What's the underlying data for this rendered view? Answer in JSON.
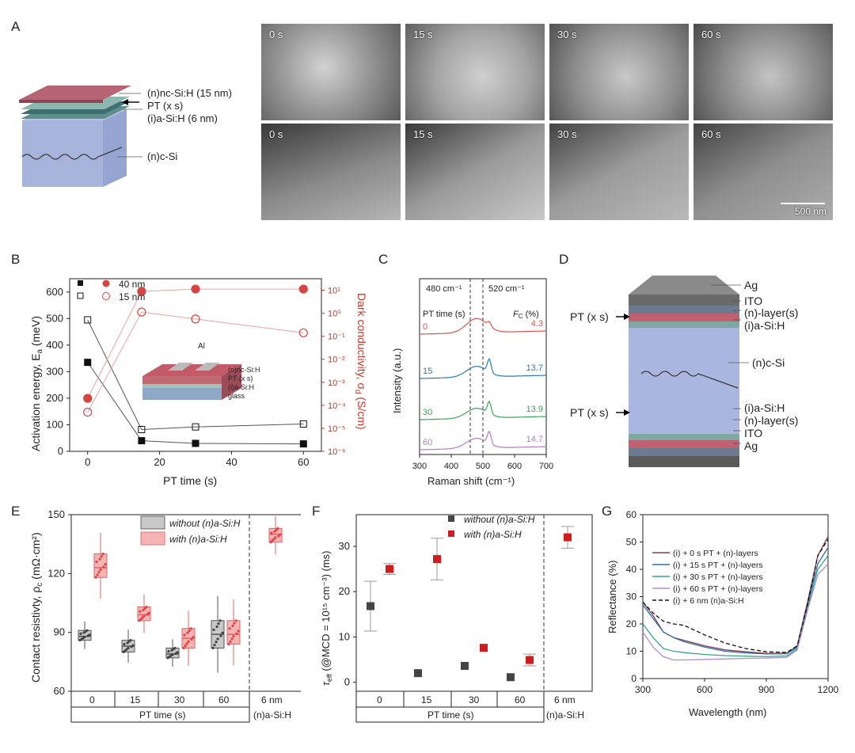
{
  "panels": [
    "A",
    "B",
    "C",
    "D",
    "E",
    "F",
    "G"
  ],
  "panelA": {
    "stack_labels": [
      "(n)nc-Si:H (15 nm)",
      "PT (x s)",
      "(i)a-Si:H (6 nm)",
      "(n)c-Si"
    ],
    "sem_times": [
      "0 s",
      "15 s",
      "30 s",
      "60 s"
    ],
    "scale_bar": "500 nm"
  },
  "panelB": {
    "ylabel_left": "Activation energy, E",
    "ylabel_left_sub": "a",
    "ylabel_left_unit": " (meV)",
    "ylabel_right": "Dark conductivity, σ",
    "ylabel_right_sub": "d",
    "ylabel_right_unit": " (S/cm)",
    "xlabel": "PT time (s)",
    "legend": [
      "40 nm",
      "15 nm"
    ],
    "inset_labels": [
      "Al",
      "(n)nc-Si:H",
      "PT (x s)",
      "(i)a-Si:H",
      "glass"
    ],
    "xticks": [
      "0",
      "20",
      "40",
      "60"
    ],
    "yticks_left": [
      "0",
      "100",
      "200",
      "300",
      "400",
      "500",
      "600"
    ],
    "yticks_right": [
      "10⁻⁶",
      "10⁻⁵",
      "10⁻⁴",
      "10⁻³",
      "10⁻²",
      "10⁻¹",
      "10⁰",
      "10¹"
    ]
  },
  "panelC": {
    "xlabel": "Raman shift (cm⁻¹)",
    "ylabel": "Intensity (a.u.)",
    "header_left": "PT time (s)",
    "header_right": "F",
    "header_right_sub": "C",
    "header_right_unit": " (%)",
    "line_labels": [
      "480 cm⁻¹",
      "520 cm⁻¹"
    ],
    "times": [
      "0",
      "15",
      "30",
      "60"
    ],
    "fc": [
      "4.3",
      "13.7",
      "13.9",
      "14.7"
    ],
    "colors": [
      "#d9534f",
      "#2a7ab8",
      "#3aa35a",
      "#b07cc6"
    ],
    "xticks": [
      "300",
      "400",
      "500",
      "600",
      "700"
    ]
  },
  "panelD": {
    "labels_right": [
      "Ag",
      "ITO",
      "(n)-layer(s)",
      "(i)a-Si:H",
      "(n)c-Si",
      "(i)a-Si:H",
      "(n)-layer(s)",
      "ITO",
      "Ag"
    ],
    "labels_left": [
      "PT (x s)",
      "PT (x s)"
    ]
  },
  "panelE": {
    "ylabel": "Contact resistivty, ρ",
    "ylabel_sub": "c",
    "ylabel_unit": " (mΩ·cm²)",
    "legend": [
      "without (n)a-Si:H",
      "with (n)a-Si:H"
    ],
    "yticks": [
      "60",
      "90",
      "120",
      "150"
    ],
    "cat_labels": [
      "0",
      "15",
      "30",
      "60",
      "6 nm"
    ],
    "group_label": "PT time (s)",
    "extra_label": "(n)a-Si:H"
  },
  "panelF": {
    "ylabel": "τ",
    "ylabel_sub": "eff",
    "ylabel_unit": " (@MCD = 10¹⁵ cm⁻³) (ms)",
    "legend": [
      "without (n)a-Si:H",
      "with (n)a-Si:H"
    ],
    "yticks": [
      "0",
      "10",
      "20",
      "30"
    ],
    "cat_labels": [
      "0",
      "15",
      "30",
      "60",
      "6 nm"
    ],
    "group_label": "PT time (s)",
    "extra_label": "(n)a-Si:H"
  },
  "panelG": {
    "xlabel": "Wavelength (nm)",
    "ylabel": "Reflectance (%)",
    "legend": [
      "(i) +  0 s PT + (n)-layers",
      "(i) + 15 s PT + (n)-layers",
      "(i) + 30 s PT + (n)-layers",
      "(i) + 60 s PT + (n)-layers",
      "(i) + 6 nm (n)a-Si:H"
    ],
    "colors": [
      "#8b3a4a",
      "#2a6fb0",
      "#3aa38a",
      "#b58acb",
      "#111111"
    ],
    "xticks": [
      "300",
      "600",
      "900",
      "1200"
    ],
    "yticks": [
      "0",
      "10",
      "20",
      "30",
      "40",
      "50",
      "60"
    ]
  },
  "chart_data": [
    {
      "type": "scatter",
      "title": "B",
      "xlabel": "PT time (s)",
      "ylabel": "Activation energy (meV)",
      "xlim": [
        -5,
        65
      ],
      "ylim": [
        0,
        650
      ],
      "series": [
        {
          "name": "Ea 40 nm",
          "x": [
            0,
            15,
            30,
            60
          ],
          "y": [
            335,
            40,
            30,
            28
          ]
        },
        {
          "name": "Ea 15 nm",
          "x": [
            0,
            15,
            30,
            60
          ],
          "y": [
            495,
            82,
            92,
            103
          ]
        },
        {
          "name": "σd 40 nm (log10 S/cm)",
          "x": [
            0,
            15,
            30,
            60
          ],
          "y": [
            -3.7,
            0.95,
            1.05,
            1.05
          ]
        },
        {
          "name": "σd 15 nm (log10 S/cm)",
          "x": [
            0,
            15,
            30,
            60
          ],
          "y": [
            -4.3,
            0.05,
            -0.25,
            -0.85
          ]
        }
      ]
    },
    {
      "type": "line",
      "title": "C",
      "xlabel": "Raman shift (cm⁻¹)",
      "ylabel": "Intensity (a.u.)",
      "xlim": [
        300,
        700
      ],
      "peaks": [
        480,
        520
      ],
      "series": [
        {
          "name": "0",
          "fc": 4.3
        },
        {
          "name": "15",
          "fc": 13.7
        },
        {
          "name": "30",
          "fc": 13.9
        },
        {
          "name": "60",
          "fc": 14.7
        }
      ]
    },
    {
      "type": "box",
      "title": "E",
      "ylabel": "Contact resistivity (mΩ·cm²)",
      "ylim": [
        60,
        150
      ],
      "categories": [
        "0",
        "15",
        "30",
        "60",
        "6 nm"
      ],
      "series": [
        {
          "name": "without (n)a-Si:H",
          "medians": [
            88,
            83,
            79,
            89,
            null
          ],
          "q1": [
            86,
            80,
            77,
            82,
            null
          ],
          "q3": [
            91,
            86,
            82,
            96,
            null
          ]
        },
        {
          "name": "with (n)a-Si:H",
          "medians": [
            123,
            99,
            87,
            89,
            140
          ],
          "q1": [
            118,
            96,
            82,
            84,
            136
          ],
          "q3": [
            130,
            103,
            92,
            96,
            143
          ]
        }
      ]
    },
    {
      "type": "scatter",
      "title": "F",
      "ylabel": "τeff (ms)",
      "ylim": [
        -2,
        37
      ],
      "categories": [
        "0",
        "15",
        "30",
        "60",
        "6 nm"
      ],
      "series": [
        {
          "name": "without (n)a-Si:H",
          "values": [
            16.8,
            2.0,
            3.6,
            1.1,
            null
          ],
          "err": [
            5.5,
            0,
            0,
            0,
            null
          ]
        },
        {
          "name": "with (n)a-Si:H",
          "values": [
            25.0,
            27.2,
            7.6,
            4.9,
            32.0
          ],
          "err": [
            1.2,
            4.6,
            0,
            1.3,
            2.4
          ]
        }
      ]
    },
    {
      "type": "line",
      "title": "G",
      "xlabel": "Wavelength (nm)",
      "ylabel": "Reflectance (%)",
      "xlim": [
        300,
        1200
      ],
      "ylim": [
        0,
        60
      ],
      "x": [
        300,
        350,
        400,
        450,
        500,
        600,
        700,
        800,
        900,
        1000,
        1050,
        1100,
        1150,
        1200
      ],
      "series": [
        {
          "name": "(i) + 0 s PT + (n)-layers",
          "y": [
            28,
            23,
            17,
            15,
            14,
            12,
            10.5,
            9.8,
            9.2,
            9.3,
            12,
            28,
            45,
            52
          ]
        },
        {
          "name": "(i) + 15 s PT + (n)-layers",
          "y": [
            27,
            22,
            17,
            15,
            13.5,
            11.5,
            10,
            9.4,
            9.0,
            9.1,
            11.5,
            27,
            42,
            48
          ]
        },
        {
          "name": "(i) + 30 s PT + (n)-layers",
          "y": [
            20,
            15,
            11,
            10,
            9.5,
            8.8,
            8.4,
            8.2,
            8.0,
            8.3,
            11,
            26,
            40,
            45
          ]
        },
        {
          "name": "(i) + 60 s PT + (n)-layers",
          "y": [
            17,
            11.5,
            8,
            6.8,
            6.8,
            7,
            7.2,
            7.4,
            7.5,
            7.8,
            10.5,
            25,
            38,
            42
          ]
        },
        {
          "name": "(i) + 6 nm (n)a-Si:H",
          "y": [
            28,
            24,
            21,
            20,
            19.5,
            16,
            13,
            11,
            9.8,
            9.6,
            12,
            27,
            45,
            51
          ]
        }
      ]
    }
  ]
}
